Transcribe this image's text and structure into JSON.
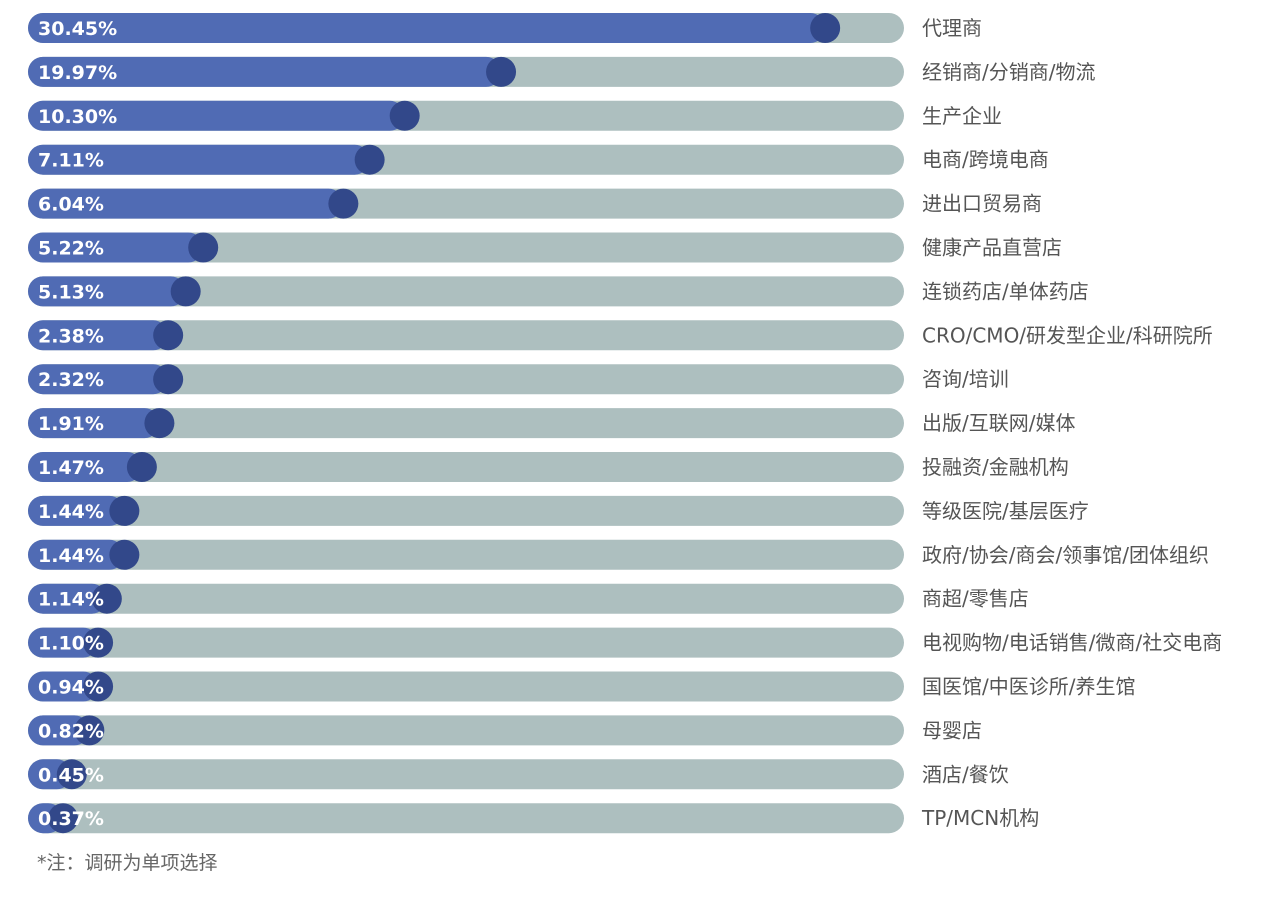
{
  "chart_data": {
    "type": "bar",
    "orientation": "horizontal",
    "categories": [
      "代理商",
      "经销商/分销商/物流",
      "生产企业",
      "电商/跨境电商",
      "进出口贸易商",
      "健康产品直营店",
      "连锁药店/单体药店",
      "CRO/CMO/研发型企业/科研院所",
      "咨询/培训",
      "出版/互联网/媒体",
      "投融资/金融机构",
      "等级医院/基层医疗",
      "政府/协会/商会/领事馆/团体组织",
      "商超/零售店",
      "电视购物/电话销售/微商/社交电商",
      "国医馆/中医诊所/养生馆",
      "母婴店",
      "酒店/餐饮",
      "TP/MCN机构"
    ],
    "values": [
      30.45,
      19.97,
      10.3,
      7.11,
      6.04,
      5.22,
      5.13,
      2.38,
      2.32,
      1.91,
      1.47,
      1.44,
      1.44,
      1.14,
      1.1,
      0.94,
      0.82,
      0.45,
      0.37
    ],
    "value_labels": [
      "30.45%",
      "19.97%",
      "10.30%",
      "7.11%",
      "6.04%",
      "5.22%",
      "5.13%",
      "2.38%",
      "2.32%",
      "1.91%",
      "1.47%",
      "1.44%",
      "1.44%",
      "1.14%",
      "1.10%",
      "0.94%",
      "0.82%",
      "0.45%",
      "0.37%"
    ],
    "fill_fraction": [
      0.91,
      0.54,
      0.43,
      0.39,
      0.36,
      0.2,
      0.18,
      0.16,
      0.16,
      0.15,
      0.13,
      0.11,
      0.11,
      0.09,
      0.08,
      0.08,
      0.07,
      0.05,
      0.04
    ],
    "unit": "%",
    "legend": "none",
    "grid": false,
    "colors": {
      "fill": "#506bb4",
      "track": "#adbfbf",
      "knob": "#32488a",
      "value_text": "#ffffff",
      "category_text": "#555555"
    }
  },
  "footnote": "*注：调研为单项选择"
}
